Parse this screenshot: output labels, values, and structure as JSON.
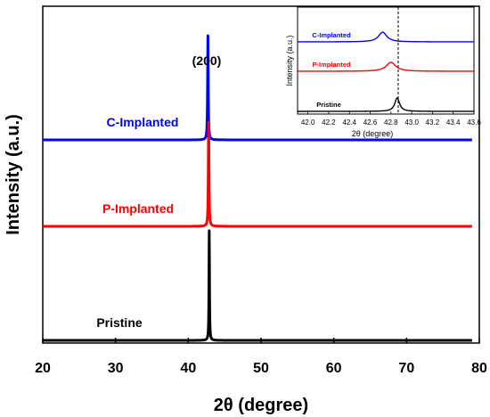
{
  "chart_data": [
    {
      "type": "line",
      "xlabel": "2θ (degree)",
      "ylabel": "Intensity (a.u.)",
      "xlim": [
        20,
        80
      ],
      "xticks": [
        20,
        30,
        40,
        50,
        60,
        70,
        80
      ],
      "annotation": "(200)",
      "yticks_shown": false,
      "grid": false,
      "legend": "none",
      "series": [
        {
          "name": "C-Implanted",
          "color": "#0000ff",
          "baseline": 0.7,
          "peak_x": 42.7,
          "peak_height": 0.95,
          "width": 0.15,
          "x": [
            20,
            42.5,
            42.7,
            42.9,
            79
          ],
          "y": [
            0.7,
            0.71,
            1.65,
            0.71,
            0.7
          ]
        },
        {
          "name": "P-Implanted",
          "color": "#ff0000",
          "baseline": 0.37,
          "peak_x": 42.8,
          "peak_height": 0.95,
          "width": 0.15,
          "x": [
            20,
            42.6,
            42.8,
            43.0,
            79
          ],
          "y": [
            0.37,
            0.38,
            1.32,
            0.38,
            0.37
          ]
        },
        {
          "name": "Pristine",
          "color": "#000000",
          "baseline": 0.0,
          "peak_x": 42.88,
          "peak_height": 1.0,
          "width": 0.12,
          "x": [
            20,
            42.7,
            42.88,
            43.05,
            79
          ],
          "y": [
            0.0,
            0.01,
            1.0,
            0.01,
            0.0
          ]
        }
      ]
    },
    {
      "type": "line",
      "xlabel": "2θ (degree)",
      "ylabel": "Intensity (a.u.)",
      "xlim": [
        41.9,
        43.6
      ],
      "xticks": [
        42.0,
        42.2,
        42.4,
        42.6,
        42.8,
        43.0,
        43.2,
        43.4,
        43.6
      ],
      "reference_line_x": 42.87,
      "reference_line_style": "dashed",
      "yticks_shown": false,
      "legend": "none",
      "series": [
        {
          "name": "C-Implanted",
          "color": "#0000ff",
          "baseline": 0.7,
          "peak_x": 42.72,
          "peak_height": 0.26,
          "width": 0.06
        },
        {
          "name": "P-Implanted",
          "color": "#ff0000",
          "baseline": 0.38,
          "peak_x": 42.8,
          "peak_height": 0.24,
          "width": 0.07
        },
        {
          "name": "Pristine",
          "color": "#000000",
          "baseline": 0.0,
          "peak_x": 42.86,
          "peak_height": 0.36,
          "width": 0.035
        }
      ]
    }
  ]
}
